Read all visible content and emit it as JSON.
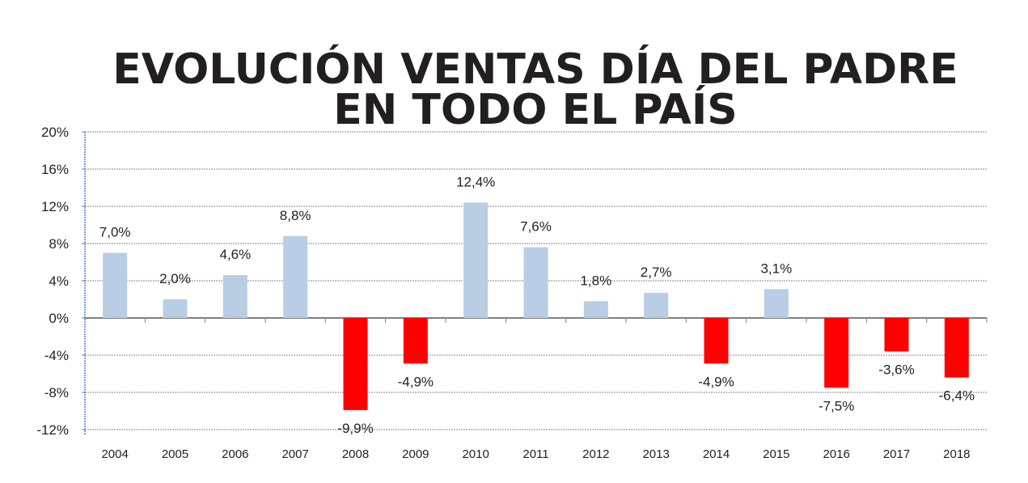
{
  "chart_data": {
    "type": "bar",
    "title": [
      "EVOLUCIÓN VENTAS DÍA DEL PADRE",
      "EN TODO EL PAÍS"
    ],
    "categories": [
      "2004",
      "2005",
      "2006",
      "2007",
      "2008",
      "2009",
      "2010",
      "2011",
      "2012",
      "2013",
      "2014",
      "2015",
      "2016",
      "2017",
      "2018"
    ],
    "values": [
      7.0,
      2.0,
      4.6,
      8.8,
      -9.9,
      -4.9,
      12.4,
      7.6,
      1.8,
      2.7,
      -4.9,
      3.1,
      -7.5,
      -3.6,
      -6.4
    ],
    "data_labels": [
      "7,0%",
      "2,0%",
      "4,6%",
      "8,8%",
      "-9,9%",
      "-4,9%",
      "12,4%",
      "7,6%",
      "1,8%",
      "2,7%",
      "-4,9%",
      "3,1%",
      "-7,5%",
      "-3,6%",
      "-6,4%"
    ],
    "yticks": [
      20,
      16,
      12,
      8,
      4,
      0,
      -4,
      -8,
      -12
    ],
    "ytick_labels": [
      "20%",
      "16%",
      "12%",
      "8%",
      "4%",
      "0%",
      "-4%",
      "-8%",
      "-12%"
    ],
    "ylim": [
      -12,
      20
    ],
    "xlabel": "",
    "ylabel": "",
    "grid": true,
    "colors": {
      "positive": "#b9cde4",
      "negative": "#ff0000",
      "grid": "#8a8a8a",
      "axis": "#4f81bd"
    }
  }
}
